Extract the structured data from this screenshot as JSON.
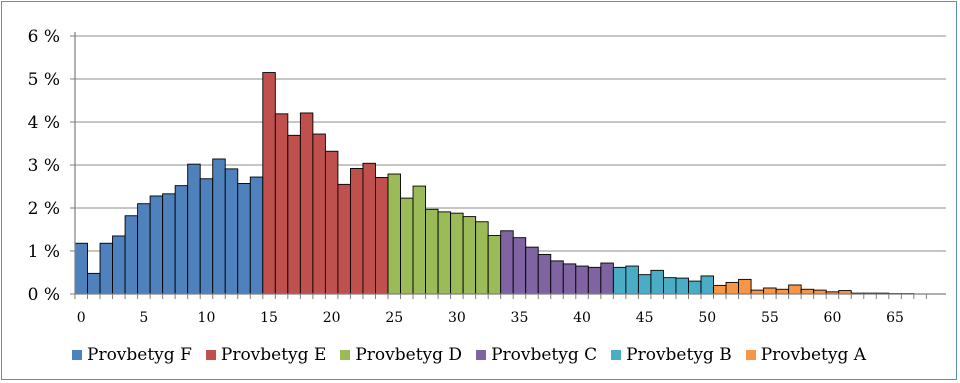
{
  "chart_data": {
    "type": "bar",
    "yticks": [
      "0 %",
      "1 %",
      "2 %",
      "3 %",
      "4 %",
      "5 %",
      "6 %"
    ],
    "xticks": [
      "0",
      "5",
      "10",
      "15",
      "20",
      "25",
      "30",
      "35",
      "40",
      "45",
      "50",
      "55",
      "60",
      "65"
    ],
    "ylim": [
      0,
      6
    ],
    "xlim": [
      0,
      68
    ],
    "grid": true,
    "legend_position": "bottom",
    "series": [
      {
        "name": "Provbetyg F",
        "color": "#4f81bd",
        "x": [
          0,
          1,
          2,
          3,
          4,
          5,
          6,
          7,
          8,
          9,
          10,
          11,
          12,
          13,
          14
        ],
        "values": [
          1.18,
          0.48,
          1.18,
          1.35,
          1.82,
          2.1,
          2.28,
          2.33,
          2.52,
          3.02,
          2.68,
          3.14,
          2.91,
          2.57,
          2.72
        ]
      },
      {
        "name": "Provbetyg E",
        "color": "#c0504d",
        "x": [
          15,
          16,
          17,
          18,
          19,
          20,
          21,
          22,
          23,
          24
        ],
        "values": [
          5.15,
          4.19,
          3.69,
          4.21,
          3.72,
          3.32,
          2.55,
          2.92,
          3.04,
          2.71
        ]
      },
      {
        "name": "Provbetyg D",
        "color": "#9bbb59",
        "x": [
          25,
          26,
          27,
          28,
          29,
          30,
          31,
          32,
          33
        ],
        "values": [
          2.79,
          2.23,
          2.51,
          1.97,
          1.91,
          1.88,
          1.8,
          1.68,
          1.36
        ]
      },
      {
        "name": "Provbetyg C",
        "color": "#8064a2",
        "x": [
          34,
          35,
          36,
          37,
          38,
          39,
          40,
          41,
          42
        ],
        "values": [
          1.47,
          1.31,
          1.09,
          0.92,
          0.77,
          0.7,
          0.65,
          0.62,
          0.72
        ]
      },
      {
        "name": "Provbetyg B",
        "color": "#4bacc6",
        "x": [
          43,
          44,
          45,
          46,
          47,
          48,
          49,
          50
        ],
        "values": [
          0.62,
          0.65,
          0.45,
          0.55,
          0.38,
          0.37,
          0.3,
          0.42
        ]
      },
      {
        "name": "Provbetyg A",
        "color": "#f79646",
        "x": [
          51,
          52,
          53,
          54,
          55,
          56,
          57,
          58,
          59,
          60,
          61,
          62,
          63,
          64,
          65,
          66
        ],
        "values": [
          0.2,
          0.27,
          0.34,
          0.09,
          0.14,
          0.11,
          0.21,
          0.11,
          0.09,
          0.05,
          0.08,
          0.02,
          0.02,
          0.02,
          0.01,
          0.01
        ]
      }
    ]
  }
}
